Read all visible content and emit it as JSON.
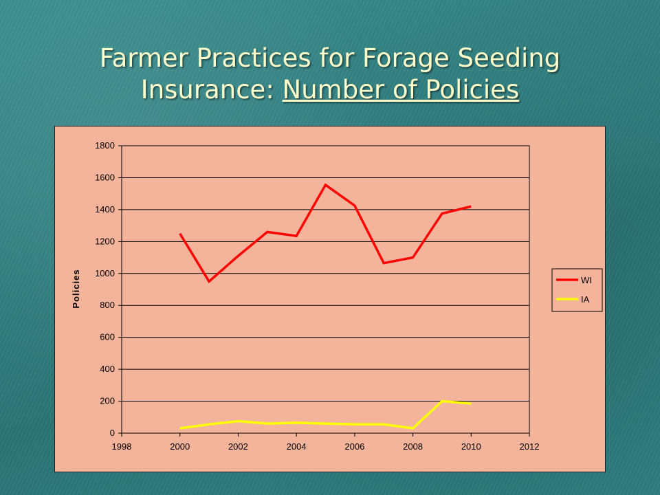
{
  "slide": {
    "title_line1": "Farmer Practices for Forage Seeding",
    "title_line2_prefix": "Insurance: ",
    "title_line2_underlined": "Number of Policies"
  },
  "colors": {
    "plot_background": "#f4b49c",
    "wi_line": "#ff0000",
    "ia_line": "#ffff00"
  },
  "chart_data": {
    "type": "line",
    "title": "",
    "xlabel": "",
    "ylabel": "Policies",
    "xlim": [
      1998,
      2012
    ],
    "ylim": [
      0,
      1800
    ],
    "xticks": [
      1998,
      2000,
      2002,
      2004,
      2006,
      2008,
      2010,
      2012
    ],
    "yticks": [
      0,
      200,
      400,
      600,
      800,
      1000,
      1200,
      1400,
      1600,
      1800
    ],
    "grid": "horizontal",
    "legend_position": "right",
    "x": [
      2000,
      2001,
      2002,
      2003,
      2004,
      2005,
      2006,
      2007,
      2008,
      2009,
      2010
    ],
    "series": [
      {
        "name": "WI",
        "color": "#ff0000",
        "values": [
          1250,
          950,
          1110,
          1260,
          1235,
          1555,
          1425,
          1065,
          1100,
          1375,
          1420
        ]
      },
      {
        "name": "IA",
        "color": "#ffff00",
        "values": [
          30,
          55,
          75,
          60,
          65,
          60,
          55,
          55,
          30,
          200,
          185
        ]
      }
    ]
  }
}
